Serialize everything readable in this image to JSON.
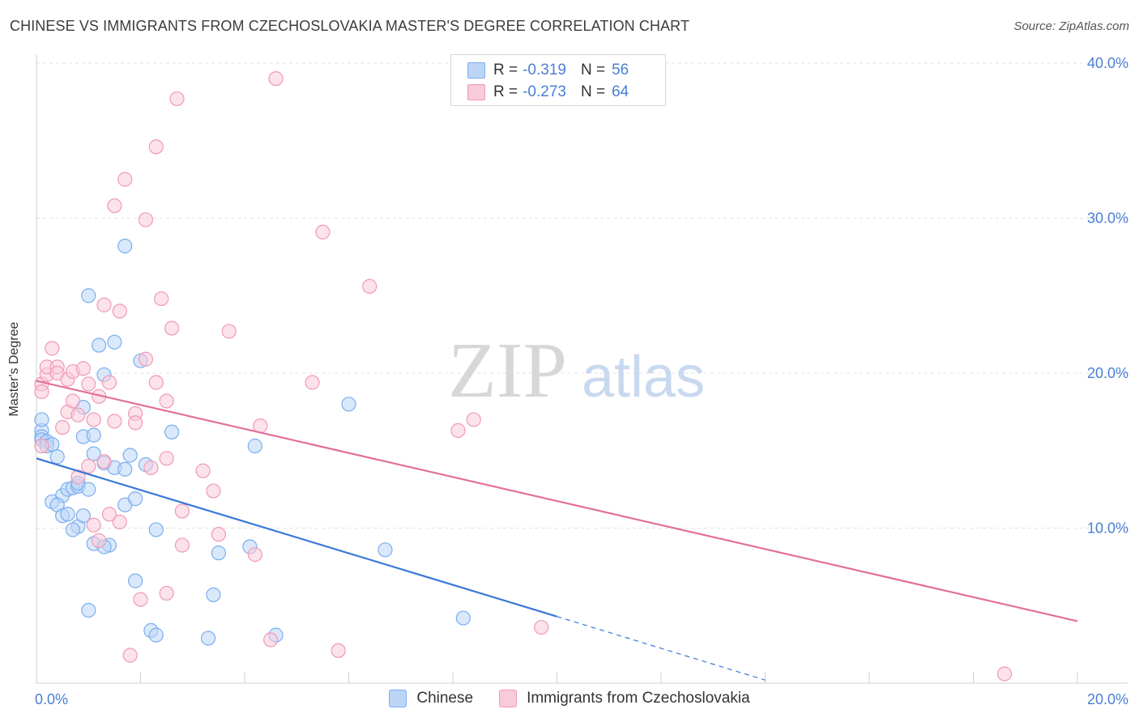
{
  "title": "CHINESE VS IMMIGRANTS FROM CZECHOSLOVAKIA MASTER'S DEGREE CORRELATION CHART",
  "source": "Source: ZipAtlas.com",
  "watermark": {
    "zip": "ZIP",
    "atlas": "atlas"
  },
  "legend": {
    "r_label": "R =",
    "n_label": "N =",
    "series": [
      {
        "name": "Chinese",
        "r": "-0.319",
        "n": "56",
        "color": "#7aaef0",
        "fill": "#bcd5f7"
      },
      {
        "name": "Immigrants from Czechoslovakia",
        "r": "-0.273",
        "n": "64",
        "color": "#f09ab5",
        "fill": "#f9cad8"
      }
    ]
  },
  "chart_data": {
    "type": "scatter",
    "title": "CHINESE VS IMMIGRANTS FROM CZECHOSLOVAKIA MASTER'S DEGREE CORRELATION CHART",
    "xlabel": "",
    "ylabel": "Master's Degree",
    "xlim": [
      0,
      20
    ],
    "ylim": [
      0,
      40
    ],
    "x_tick_labels": [
      "0.0%",
      "20.0%"
    ],
    "y_ticks": [
      10,
      20,
      30,
      40
    ],
    "y_tick_labels": [
      "10.0%",
      "20.0%",
      "30.0%",
      "40.0%"
    ],
    "grid": true,
    "series": [
      {
        "name": "Chinese",
        "color": "#3a78d8",
        "points": [
          [
            0.1,
            16.3
          ],
          [
            0.1,
            15.9
          ],
          [
            0.1,
            15.7
          ],
          [
            0.2,
            15.6
          ],
          [
            0.2,
            15.3
          ],
          [
            0.3,
            15.4
          ],
          [
            0.4,
            14.6
          ],
          [
            0.5,
            12.1
          ],
          [
            0.3,
            11.7
          ],
          [
            0.4,
            11.5
          ],
          [
            0.5,
            10.8
          ],
          [
            0.6,
            10.9
          ],
          [
            0.6,
            12.5
          ],
          [
            0.7,
            12.6
          ],
          [
            0.8,
            12.7
          ],
          [
            0.8,
            10.1
          ],
          [
            0.7,
            9.9
          ],
          [
            0.9,
            15.9
          ],
          [
            0.8,
            12.9
          ],
          [
            0.9,
            10.8
          ],
          [
            1.0,
            12.5
          ],
          [
            0.9,
            17.8
          ],
          [
            1.1,
            14.8
          ],
          [
            1.1,
            16.0
          ],
          [
            1.1,
            9.0
          ],
          [
            1.3,
            14.2
          ],
          [
            1.4,
            8.9
          ],
          [
            1.3,
            8.8
          ],
          [
            1.2,
            21.8
          ],
          [
            1.0,
            25.0
          ],
          [
            1.3,
            19.9
          ],
          [
            1.5,
            22.0
          ],
          [
            1.5,
            13.9
          ],
          [
            1.7,
            11.5
          ],
          [
            1.7,
            13.8
          ],
          [
            1.8,
            14.7
          ],
          [
            1.9,
            11.9
          ],
          [
            2.0,
            20.8
          ],
          [
            2.1,
            14.1
          ],
          [
            2.3,
            9.9
          ],
          [
            1.7,
            28.2
          ],
          [
            1.0,
            4.7
          ],
          [
            1.9,
            6.6
          ],
          [
            2.2,
            3.4
          ],
          [
            2.3,
            3.1
          ],
          [
            2.6,
            16.2
          ],
          [
            3.3,
            2.9
          ],
          [
            3.4,
            5.7
          ],
          [
            3.5,
            8.4
          ],
          [
            4.1,
            8.8
          ],
          [
            4.2,
            15.3
          ],
          [
            4.6,
            3.1
          ],
          [
            6.0,
            18.0
          ],
          [
            6.7,
            8.6
          ],
          [
            8.2,
            4.2
          ],
          [
            0.1,
            17.0
          ]
        ],
        "trend": {
          "x1": 0,
          "y1": 14.5,
          "x2": 10.0,
          "y2": 4.3,
          "dash_x2": 14.0,
          "dash_y2": 0.2
        }
      },
      {
        "name": "Immigrants from Czechoslovakia",
        "color": "#e2709a",
        "points": [
          [
            0.1,
            19.3
          ],
          [
            0.1,
            15.3
          ],
          [
            0.2,
            19.9
          ],
          [
            0.2,
            20.4
          ],
          [
            0.3,
            21.6
          ],
          [
            0.4,
            20.4
          ],
          [
            0.4,
            20.0
          ],
          [
            0.5,
            16.5
          ],
          [
            0.6,
            17.5
          ],
          [
            0.6,
            19.6
          ],
          [
            0.7,
            18.2
          ],
          [
            0.7,
            20.1
          ],
          [
            0.8,
            17.3
          ],
          [
            0.9,
            20.3
          ],
          [
            0.8,
            13.3
          ],
          [
            1.0,
            19.3
          ],
          [
            1.0,
            14.0
          ],
          [
            1.1,
            17.0
          ],
          [
            1.1,
            10.2
          ],
          [
            1.2,
            9.2
          ],
          [
            1.2,
            18.5
          ],
          [
            1.3,
            14.3
          ],
          [
            1.3,
            24.4
          ],
          [
            1.4,
            19.4
          ],
          [
            1.5,
            16.9
          ],
          [
            1.5,
            30.8
          ],
          [
            1.6,
            24.0
          ],
          [
            1.6,
            10.4
          ],
          [
            1.7,
            32.5
          ],
          [
            1.8,
            1.8
          ],
          [
            1.9,
            17.4
          ],
          [
            1.9,
            16.8
          ],
          [
            2.0,
            5.4
          ],
          [
            2.1,
            20.9
          ],
          [
            2.1,
            29.9
          ],
          [
            2.2,
            13.9
          ],
          [
            2.3,
            34.6
          ],
          [
            2.3,
            19.4
          ],
          [
            2.4,
            24.8
          ],
          [
            2.5,
            5.8
          ],
          [
            2.5,
            18.2
          ],
          [
            2.5,
            14.5
          ],
          [
            2.6,
            22.9
          ],
          [
            2.7,
            37.7
          ],
          [
            2.8,
            11.1
          ],
          [
            2.8,
            8.9
          ],
          [
            3.2,
            13.7
          ],
          [
            3.4,
            12.4
          ],
          [
            3.5,
            9.6
          ],
          [
            3.7,
            22.7
          ],
          [
            4.2,
            8.3
          ],
          [
            4.3,
            16.6
          ],
          [
            4.5,
            2.8
          ],
          [
            4.6,
            39.0
          ],
          [
            5.3,
            19.4
          ],
          [
            5.5,
            29.1
          ],
          [
            5.8,
            2.1
          ],
          [
            6.4,
            25.6
          ],
          [
            8.1,
            16.3
          ],
          [
            8.4,
            17.0
          ],
          [
            9.7,
            3.6
          ],
          [
            18.6,
            0.6
          ],
          [
            0.1,
            18.8
          ],
          [
            1.4,
            10.9
          ]
        ],
        "trend": {
          "x1": 0,
          "y1": 19.5,
          "x2": 20.0,
          "y2": 4.0
        }
      }
    ]
  }
}
